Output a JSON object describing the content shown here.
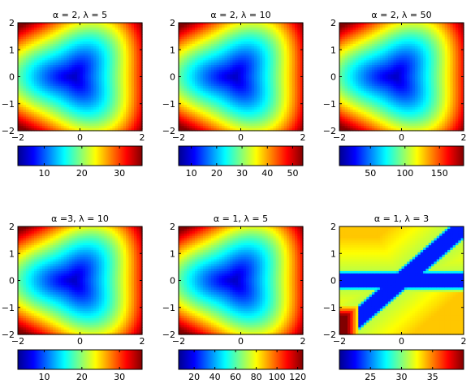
{
  "chart_data": [
    {
      "type": "heatmap",
      "title": "α = 2, λ = 5",
      "xlim": [
        -2,
        2
      ],
      "ylim": [
        -2,
        2
      ],
      "xticks": [
        "−2",
        "0",
        "2"
      ],
      "yticks": [
        "2",
        "1",
        "0",
        "−1",
        "−2"
      ],
      "colormap": "jet",
      "colorbar": {
        "placement": "bottom",
        "range": [
          3,
          36
        ],
        "ticks": [
          10,
          20,
          30
        ]
      },
      "field": {
        "shape": "tricorn",
        "valley_center": [
          -0.2,
          0.0
        ]
      }
    },
    {
      "type": "heatmap",
      "title": "α = 2, λ = 10",
      "xlim": [
        -2,
        2
      ],
      "ylim": [
        -2,
        2
      ],
      "xticks": [
        "−2",
        "0",
        "2"
      ],
      "yticks": [
        "2",
        "1",
        "0",
        "−1",
        "−2"
      ],
      "colormap": "jet",
      "colorbar": {
        "placement": "bottom",
        "range": [
          5,
          54
        ],
        "ticks": [
          10,
          20,
          30,
          40,
          50
        ]
      },
      "field": {
        "shape": "tricorn",
        "valley_center": [
          -0.2,
          0.0
        ]
      }
    },
    {
      "type": "heatmap",
      "title": "α = 2, λ = 50",
      "xlim": [
        -2,
        2
      ],
      "ylim": [
        -2,
        2
      ],
      "xticks": [
        "−2",
        "0",
        "2"
      ],
      "yticks": [
        "2",
        "1",
        "0",
        "−1",
        "−2"
      ],
      "colormap": "jet",
      "colorbar": {
        "placement": "bottom",
        "range": [
          5,
          185
        ],
        "ticks": [
          50,
          100,
          150
        ]
      },
      "field": {
        "shape": "tricorn",
        "valley_center": [
          -0.2,
          0.0
        ]
      }
    },
    {
      "type": "heatmap",
      "title": "α =3, λ = 10",
      "xlim": [
        -2,
        2
      ],
      "ylim": [
        -2,
        2
      ],
      "xticks": [
        "−2",
        "0",
        "2"
      ],
      "yticks": [
        "2",
        "1",
        "0",
        "−1",
        "−2"
      ],
      "colormap": "jet",
      "colorbar": {
        "placement": "bottom",
        "range": [
          3,
          36
        ],
        "ticks": [
          10,
          20,
          30
        ]
      },
      "field": {
        "shape": "tricorn",
        "valley_center": [
          -0.2,
          0.0
        ]
      }
    },
    {
      "type": "heatmap",
      "title": "α = 1, λ = 5",
      "xlim": [
        -2,
        2
      ],
      "ylim": [
        -2,
        2
      ],
      "xticks": [
        "−2",
        "0",
        "2"
      ],
      "yticks": [
        "2",
        "1",
        "0",
        "−1",
        "−2"
      ],
      "colormap": "jet",
      "colorbar": {
        "placement": "bottom",
        "range": [
          5,
          125
        ],
        "ticks": [
          20,
          40,
          60,
          80,
          100,
          120
        ]
      },
      "field": {
        "shape": "tricorn",
        "valley_center": [
          -0.2,
          0.0
        ]
      }
    },
    {
      "type": "heatmap",
      "title": "α = 1, λ = 3",
      "xlim": [
        -2,
        2
      ],
      "ylim": [
        -2,
        2
      ],
      "xticks": [
        "−2",
        "0",
        "2"
      ],
      "yticks": [
        "2",
        "1",
        "0",
        "−1",
        "−2"
      ],
      "colormap": "jet",
      "colorbar": {
        "placement": "bottom",
        "range": [
          20,
          40
        ],
        "ticks": [
          25,
          30,
          35
        ]
      },
      "field": {
        "shape": "cross",
        "valley_center": [
          0.0,
          0.0
        ]
      }
    }
  ]
}
